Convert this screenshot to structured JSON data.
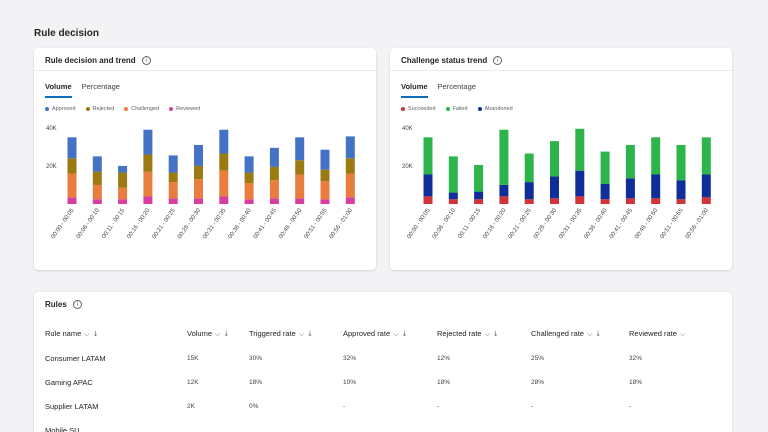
{
  "page": {
    "title": "Rule decision"
  },
  "decision_card": {
    "title": "Rule decision and trend",
    "tabs": [
      "Volume",
      "Percentage"
    ],
    "legend": [
      {
        "label": "Approved",
        "color": "#4472c4"
      },
      {
        "label": "Rejected",
        "color": "#9c7a12"
      },
      {
        "label": "Challenged",
        "color": "#e87d3e"
      },
      {
        "label": "Reviewed",
        "color": "#d63ea0"
      }
    ]
  },
  "challenge_card": {
    "title": "Challenge status trend",
    "tabs": [
      "Volume",
      "Percentage"
    ],
    "legend": [
      {
        "label": "Succeeded",
        "color": "#d13438"
      },
      {
        "label": "Failed",
        "color": "#2db44b"
      },
      {
        "label": "Abandoned",
        "color": "#102e9a"
      }
    ]
  },
  "chart_data": [
    {
      "type": "bar",
      "stacked": true,
      "categories": [
        "00:00 - 00:05",
        "00:06 - 00:10",
        "00:11 - 00:15",
        "00:16 - 00:20",
        "00:21 - 00:25",
        "00:26 - 00:30",
        "00:31 - 00:35",
        "00:36 - 00:40",
        "00:41 - 00:45",
        "00:46 - 00:50",
        "00:51 - 00:55",
        "00:56 - 01:00"
      ],
      "y_ticks": [
        "40K",
        "20K"
      ],
      "ylim": [
        0,
        42000
      ],
      "series": [
        {
          "name": "Reviewed",
          "color": "#d63ea0",
          "values": [
            3500,
            2500,
            2500,
            4000,
            3000,
            3000,
            4000,
            2500,
            3000,
            3000,
            2500,
            3500
          ]
        },
        {
          "name": "Challenged",
          "color": "#e87d3e",
          "values": [
            12500,
            7500,
            6000,
            13000,
            8500,
            10000,
            13500,
            8500,
            9500,
            12500,
            9500,
            12500
          ]
        },
        {
          "name": "Rejected",
          "color": "#9c7a12",
          "values": [
            8000,
            7000,
            8000,
            9000,
            5000,
            7000,
            9000,
            5500,
            7000,
            7500,
            6000,
            8000
          ]
        },
        {
          "name": "Approved",
          "color": "#4472c4",
          "values": [
            11000,
            8000,
            3500,
            13000,
            9000,
            11000,
            12500,
            8500,
            10000,
            12000,
            10500,
            11500
          ]
        }
      ]
    },
    {
      "type": "bar",
      "stacked": true,
      "categories": [
        "00:00 - 00:05",
        "00:06 - 00:10",
        "00:11 - 00:15",
        "00:16 - 00:20",
        "00:21 - 00:25",
        "00:26 - 00:30",
        "00:31 - 00:35",
        "00:36 - 00:40",
        "00:41 - 00:45",
        "00:46 - 00:50",
        "00:51 - 00:55",
        "00:56 - 01:00"
      ],
      "y_ticks": [
        "40K",
        "20K"
      ],
      "ylim": [
        0,
        42000
      ],
      "series": [
        {
          "name": "Succeeded",
          "color": "#d13438",
          "values": [
            4000,
            2500,
            2500,
            4000,
            2500,
            3000,
            4000,
            2500,
            3000,
            3000,
            2500,
            3500
          ]
        },
        {
          "name": "Abandoned",
          "color": "#102e9a",
          "values": [
            11500,
            3500,
            4000,
            6000,
            9000,
            11500,
            13500,
            8000,
            10500,
            12500,
            10000,
            12000
          ]
        },
        {
          "name": "Failed",
          "color": "#2db44b",
          "values": [
            19500,
            19000,
            14000,
            29000,
            15000,
            18500,
            22000,
            17000,
            17500,
            19500,
            18500,
            19500
          ]
        }
      ]
    }
  ],
  "rules": {
    "title": "Rules",
    "columns": [
      "Rule name",
      "Volume",
      "Triggered rate",
      "Approved rate",
      "Rejected rate",
      "Challenged rate",
      "Reviewed rate"
    ],
    "rows": [
      [
        "Consumer LATAM",
        "15K",
        "30%",
        "32%",
        "12%",
        "25%",
        "32%"
      ],
      [
        "Gaming APAC",
        "12K",
        "18%",
        "10%",
        "18%",
        "28%",
        "18%"
      ],
      [
        "Supplier LATAM",
        "2K",
        "0%",
        "-",
        "-",
        "-",
        "-"
      ],
      [
        "Mobile SU",
        "",
        "",
        "",
        "",
        "",
        ""
      ]
    ]
  }
}
